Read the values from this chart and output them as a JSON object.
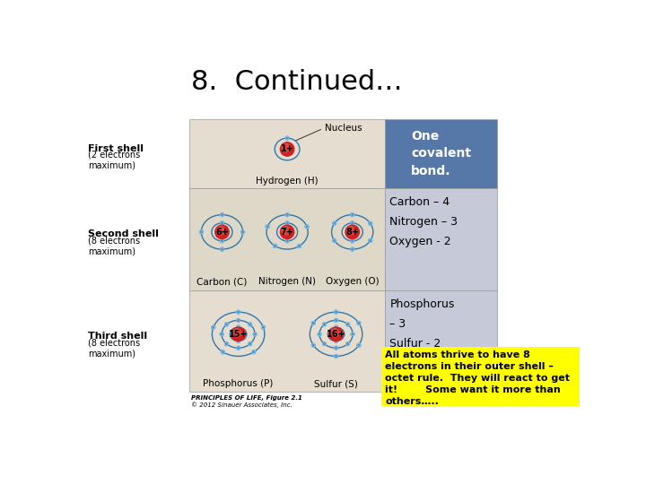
{
  "title": "8.  Continued…",
  "title_fontsize": 22,
  "bg_color": "#ffffff",
  "blue_box_color": "#5578a8",
  "blue_box_text": "One\ncovalent\nbond.",
  "blue_box_text_color": "#ffffff",
  "yellow_box_color": "#ffff00",
  "yellow_text": "All atoms thrive to have 8\nelectrons in their outer shell –\noctet rule.  They will react to get\nit!        Some want it more than\nothers…..",
  "yellow_text_color": "#000000",
  "left_label1_bold": "First shell",
  "left_label1_sub": "(2 electrons\nmaximum)",
  "left_label2_bold": "Second shell",
  "left_label2_sub": "(8 electrons\nmaximum)",
  "left_label3_bold": "Third shell",
  "left_label3_sub": "(8 electrons\nmaximum)",
  "cno_text": "Carbon – 4\nNitrogen – 3\nOxygen - 2",
  "ps_text": "Phosphorus\n– 3\nSulfur - 2",
  "small_text_line1": "PRINCIPLES OF LIFE, Figure 2.1",
  "small_text_line2": "© 2012 Sinauer Associates, Inc.",
  "nucleus_label": "Nucleus",
  "hydrogen_label": "Hydrogen (H)",
  "carbon_label": "Carbon (C)",
  "nitrogen_label": "Nitrogen (N)",
  "oxygen_label": "Oxygen (O)",
  "phosphorus_label": "Phosphorus (P)",
  "sulfur_label": "Sulfur (S)",
  "row1_bg": "#e5ddd0",
  "row2_bg": "#ddd8c8",
  "row3_bg": "#e5ddd0",
  "right_box_bg": "#c5c9d8",
  "nucleus_color": "#cc2222",
  "shell_color": "#3377aa",
  "electron_color": "#4488cc"
}
